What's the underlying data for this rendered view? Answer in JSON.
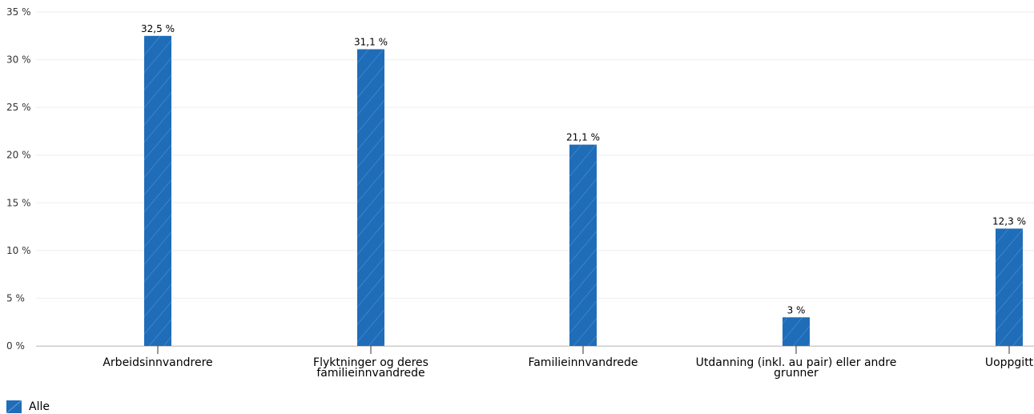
{
  "chart_data": {
    "type": "bar",
    "categories": [
      [
        "Arbeidsinnvandrere"
      ],
      [
        "Flyktninger og deres",
        "familieinnvandrede"
      ],
      [
        "Familieinnvandrede"
      ],
      [
        "Utdanning (inkl. au pair) eller andre",
        "grunner"
      ],
      [
        "Uoppgitt"
      ]
    ],
    "series": [
      {
        "name": "Alle",
        "values": [
          32.5,
          31.1,
          21.1,
          3,
          12.3
        ],
        "labels": [
          "32,5 %",
          "31,1 %",
          "21,1 %",
          "3 %",
          "12,3 %"
        ],
        "color": "#1f6db9"
      }
    ],
    "y_ticks": [
      "0 %",
      "5 %",
      "10 %",
      "15 %",
      "20 %",
      "25 %",
      "30 %",
      "35 %"
    ],
    "ylim": [
      0,
      35
    ],
    "grid": true,
    "legend_position": "bottom-left"
  }
}
